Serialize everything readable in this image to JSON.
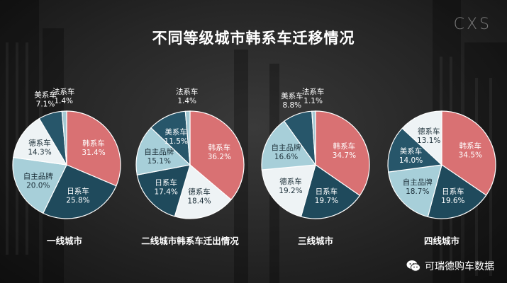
{
  "title": "不同等级城市韩系车迁移情况",
  "logo_text": "CXS",
  "footer": {
    "brand": "可瑞德购车数据",
    "icon": "wechat-icon"
  },
  "colors": {
    "韩系车": "#d97173",
    "日系车": "#1f4a5c",
    "自主品牌": "#a7cfd9",
    "德系车": "#eef3f5",
    "美系车": "#27566a",
    "法系车": "#a3c9d3"
  },
  "chart_data": [
    {
      "type": "pie",
      "caption": "一线城市",
      "slices": [
        {
          "name": "韩系车",
          "value": 31.4,
          "label": "31.4%"
        },
        {
          "name": "日系车",
          "value": 25.8,
          "label": "25.8%"
        },
        {
          "name": "自主品牌",
          "value": 20.0,
          "label": "20.0%"
        },
        {
          "name": "德系车",
          "value": 14.3,
          "label": "14.3%"
        },
        {
          "name": "美系车",
          "value": 7.1,
          "label": "7.1%"
        },
        {
          "name": "法系车",
          "value": 1.4,
          "label": "1.4%"
        }
      ]
    },
    {
      "type": "pie",
      "caption": "二线城市韩系车迁出情况",
      "slices": [
        {
          "name": "韩系车",
          "value": 36.2,
          "label": "36.2%"
        },
        {
          "name": "德系车",
          "value": 18.4,
          "label": "18.4%"
        },
        {
          "name": "日系车",
          "value": 17.4,
          "label": "17.4%"
        },
        {
          "name": "自主品牌",
          "value": 15.1,
          "label": "15.1%"
        },
        {
          "name": "美系车",
          "value": 11.5,
          "label": "11.5%"
        },
        {
          "name": "法系车",
          "value": 1.4,
          "label": "1.4%"
        }
      ]
    },
    {
      "type": "pie",
      "caption": "三线城市",
      "slices": [
        {
          "name": "韩系车",
          "value": 34.7,
          "label": "34.7%"
        },
        {
          "name": "日系车",
          "value": 19.7,
          "label": "19.7%"
        },
        {
          "name": "德系车",
          "value": 19.2,
          "label": "19.2%"
        },
        {
          "name": "自主品牌",
          "value": 16.6,
          "label": "16.6%"
        },
        {
          "name": "美系车",
          "value": 8.8,
          "label": "8.8%"
        },
        {
          "name": "法系车",
          "value": 1.1,
          "label": "1.1%"
        }
      ]
    },
    {
      "type": "pie",
      "caption": "四线城市",
      "slices": [
        {
          "name": "韩系车",
          "value": 34.5,
          "label": "34.5%"
        },
        {
          "name": "日系车",
          "value": 19.6,
          "label": "19.6%"
        },
        {
          "name": "自主品牌",
          "value": 18.7,
          "label": "18.7%"
        },
        {
          "name": "美系车",
          "value": 14.0,
          "label": "14.0%"
        },
        {
          "name": "德系车",
          "value": 13.1,
          "label": "13.1%"
        }
      ]
    }
  ]
}
